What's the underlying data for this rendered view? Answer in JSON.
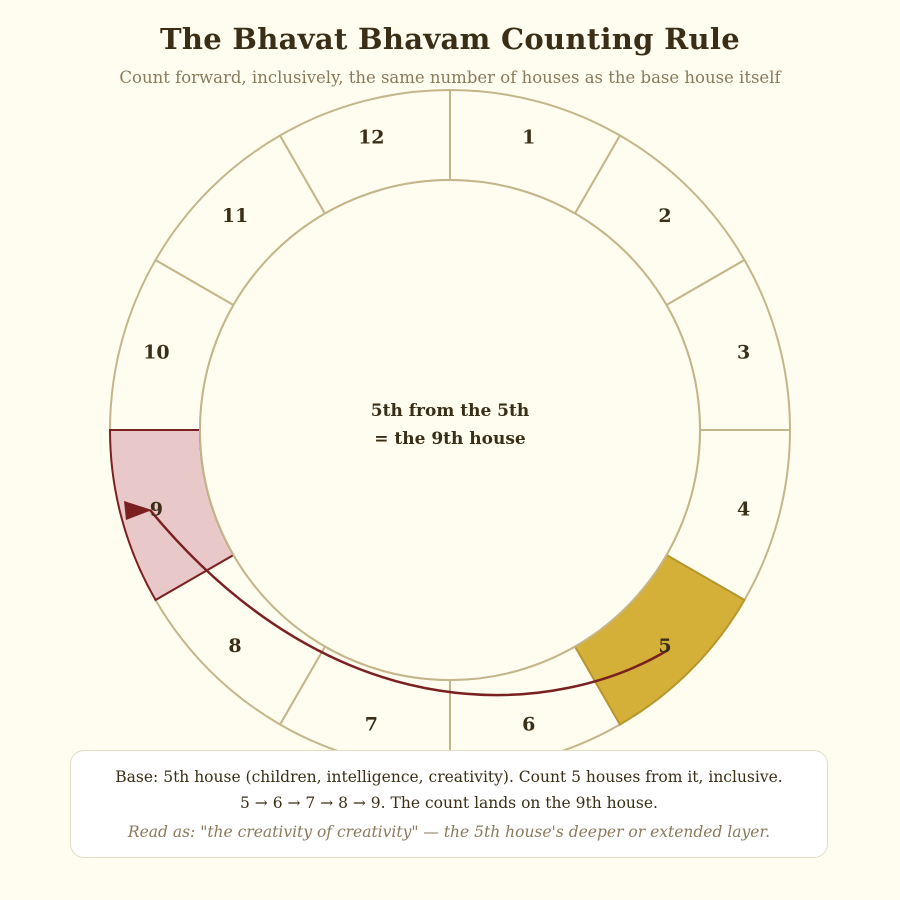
{
  "title": "The Bhavat Bhavam Counting Rule",
  "subtitle": "Count forward, inclusively, the same number of houses as the base house itself",
  "wheel": {
    "houses": [
      "1",
      "2",
      "3",
      "4",
      "5",
      "6",
      "7",
      "8",
      "9",
      "10",
      "11",
      "12"
    ],
    "base_house": 5,
    "target_house": 9,
    "center_line1": "5th from the 5th",
    "center_line2": "= the 9th house"
  },
  "colors": {
    "background": "#fffcf0",
    "ring_stroke": "#c4b68a",
    "base_fill": "#d4b038",
    "base_stroke": "#b8962e",
    "target_fill": "#e8c8c8",
    "target_stroke": "#7a2020",
    "arrow": "#7a2020",
    "text": "#3a2e17",
    "muted": "#8a7a5c"
  },
  "note": {
    "line1": "Base: 5th house (children, intelligence, creativity). Count 5 houses from it, inclusive.",
    "line2": "5 → 6 → 7 → 8 → 9. The count lands on the 9th house.",
    "line3": "Read as: \"the creativity of creativity\" — the 5th house's deeper or extended layer."
  }
}
